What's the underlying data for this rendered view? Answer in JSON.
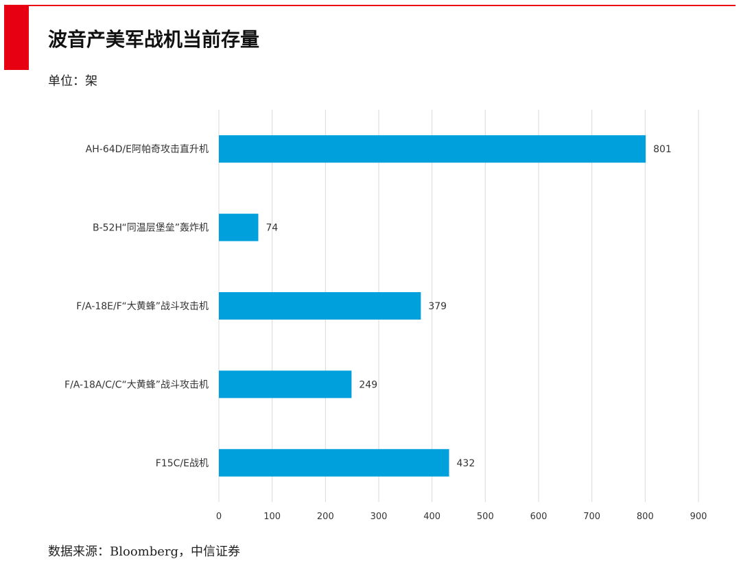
{
  "header": {
    "title": "波音产美军战机当前存量",
    "unit": "单位：架"
  },
  "footer": {
    "source": "数据来源：Bloomberg，中信证券"
  },
  "colors": {
    "accent_red": "#e60012",
    "bar": "#00a0dc",
    "grid": "#d9d9d9"
  },
  "chart_data": {
    "type": "bar",
    "orientation": "horizontal",
    "categories": [
      "AH-64D/E阿帕奇攻击直升机",
      "B-52H“同温层堡垒”轰炸机",
      "F/A-18E/F“大黄蜂”战斗攻击机",
      "F/A-18A/C/C“大黄蜂”战斗攻击机",
      "F15C/E战机"
    ],
    "values": [
      801,
      74,
      379,
      249,
      432
    ],
    "xlim": [
      0,
      900
    ],
    "xticks": [
      0,
      100,
      200,
      300,
      400,
      500,
      600,
      700,
      800,
      900
    ],
    "grid": true,
    "data_labels": true
  }
}
